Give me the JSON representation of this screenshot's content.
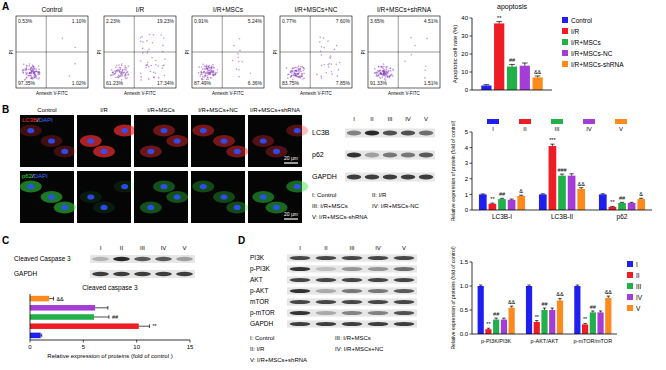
{
  "figure": {
    "panel_labels": [
      "A",
      "B",
      "C",
      "D"
    ],
    "flow": {
      "x_label": "Annexin V-FITC",
      "y_label": "PI",
      "plots": [
        {
          "title": "Control",
          "quadrants": [
            "0.53%",
            "1.10%",
            "97.35%",
            "1.02%"
          ]
        },
        {
          "title": "I/R",
          "quadrants": [
            "2.23%",
            "19.23%",
            "61.23%",
            "17.34%"
          ]
        },
        {
          "title": "I/R+MSCs",
          "quadrants": [
            "0.91%",
            "5.24%",
            "87.49%",
            "6.36%"
          ]
        },
        {
          "title": "I/R+MSCs+NC",
          "quadrants": [
            "0.77%",
            "7.60%",
            "83.75%",
            "7.85%"
          ]
        },
        {
          "title": "I/R+MSCs+shRNA",
          "quadrants": [
            "3.65%",
            "4.51%",
            "91.33%",
            "1.51%"
          ]
        }
      ]
    },
    "images": {
      "columns": [
        "Control",
        "I/R",
        "I/R+MSCs",
        "I/R+MSCs+NC",
        "I/R+MSCs+shRNA"
      ],
      "rows": [
        {
          "label_parts": [
            "LC3B",
            "/",
            "DAPI"
          ]
        },
        {
          "label_parts": [
            "p62",
            "/",
            "DAPI"
          ]
        }
      ],
      "scale_bar": "20 μm"
    },
    "blot_B": {
      "lanes": [
        "I",
        "II",
        "III",
        "IV",
        "V"
      ],
      "rows": [
        "LC3B",
        "p62",
        "GAPDH"
      ],
      "key": [
        "I: Control",
        "II: I/R",
        "III: I/R+MSCs",
        "IV: I/R+MSCs-NC",
        "V: I/R+MSCs-shRNA"
      ]
    },
    "blot_C": {
      "lanes": [
        "I",
        "II",
        "III",
        "IV",
        "V"
      ],
      "rows": [
        "Cleaved Caspase 3",
        "GAPDH"
      ]
    },
    "blot_D": {
      "lanes": [
        "I",
        "II",
        "III",
        "IV",
        "V"
      ],
      "rows": [
        "PI3K",
        "p-PI3K",
        "AKT",
        "p-AKT",
        "mTOR",
        "p-mTOR",
        "GAPDH"
      ],
      "key": [
        "I: Control",
        "II: I/R",
        "III: I/R+MSCs",
        "IV: I/R+MSCs+NC",
        "V: I/R+MSCs+shRNA"
      ]
    }
  },
  "chart_data": [
    {
      "type": "bar",
      "title": "apoptosis",
      "y_label": "Apoptotic cell rate (%)",
      "categories": [
        null
      ],
      "series": [
        {
          "name": "Control",
          "color": "#1f1fef",
          "values": [
            2.5
          ],
          "errors": [
            0.5
          ]
        },
        {
          "name": "I/R",
          "color": "#ee1c24",
          "values": [
            37
          ],
          "errors": [
            1
          ]
        },
        {
          "name": "I/R+MSCs",
          "color": "#22b04a",
          "values": [
            13
          ],
          "errors": [
            1.2
          ]
        },
        {
          "name": "I/R+MSCs-NC",
          "color": "#a43cd6",
          "values": [
            13.5
          ],
          "errors": [
            1.5
          ]
        },
        {
          "name": "I/R+MSCs-shRNA",
          "color": "#ff8a1c",
          "values": [
            7
          ],
          "errors": [
            0.8
          ]
        }
      ],
      "ylim": [
        0,
        40
      ],
      "yticks": [
        0,
        10,
        20,
        30,
        40
      ],
      "legend": "right",
      "annotations": [
        [
          "**",
          "##",
          "&&"
        ]
      ]
    },
    {
      "type": "bar",
      "y_label": "Relative expression of protein (fold of control)",
      "categories": [
        "LC3B-I",
        "LC3B-II",
        "p62"
      ],
      "series": [
        {
          "name": "I",
          "color": "#1f1fef",
          "values": [
            1,
            1,
            1
          ],
          "errors": [
            0.03,
            0.04,
            0.04
          ]
        },
        {
          "name": "II",
          "color": "#ee1c24",
          "values": [
            0.4,
            4.1,
            0.2
          ],
          "errors": [
            0.04,
            0.12,
            0.03
          ]
        },
        {
          "name": "III",
          "color": "#22b04a",
          "values": [
            0.7,
            2.2,
            0.45
          ],
          "errors": [
            0.05,
            0.1,
            0.04
          ]
        },
        {
          "name": "IV",
          "color": "#a43cd6",
          "values": [
            0.65,
            2.2,
            0.45
          ],
          "errors": [
            0.05,
            0.12,
            0.04
          ]
        },
        {
          "name": "V",
          "color": "#ff8a1c",
          "values": [
            0.9,
            1.35,
            0.7
          ],
          "errors": [
            0.05,
            0.08,
            0.05
          ]
        }
      ],
      "ylim": [
        0,
        5
      ],
      "yticks": [
        0,
        1,
        2,
        3,
        4,
        5
      ],
      "legend": "top",
      "annotations": [
        [
          "**",
          "##",
          "&"
        ],
        [
          "***",
          "###",
          "&&"
        ],
        [
          "**",
          "##",
          "&"
        ]
      ]
    },
    {
      "type": "bar",
      "orientation": "horizontal",
      "title": "Cleaved caspase 3",
      "x_label": "Relative expression of proteins (fold of control )",
      "categories": [
        null,
        null,
        null,
        null,
        null
      ],
      "values": [
        1,
        10.2,
        6,
        6.1,
        1.8
      ],
      "errors": [
        0.1,
        1,
        1.4,
        1.2,
        0.4
      ],
      "colors": [
        "#1f1fef",
        "#ee1c24",
        "#22b04a",
        "#a43cd6",
        "#ff8a1c"
      ],
      "xlim": [
        0,
        15
      ],
      "xticks": [
        0,
        5,
        10,
        15
      ],
      "annotations": [
        [
          "**",
          "##",
          "&&"
        ]
      ]
    },
    {
      "type": "bar",
      "y_label": "Relative expression of proteins (fold of control)",
      "categories": [
        "p-PI3K/PI3K",
        "p-AKT/AKT",
        "p-mTOR/mTOR"
      ],
      "series": [
        {
          "name": "I",
          "color": "#1f1fef",
          "values": [
            1,
            1,
            1
          ],
          "errors": [
            0.02,
            0.02,
            0.02
          ]
        },
        {
          "name": "II",
          "color": "#ee1c24",
          "values": [
            0.1,
            0.25,
            0.2
          ],
          "errors": [
            0.02,
            0.03,
            0.02
          ]
        },
        {
          "name": "III",
          "color": "#22b04a",
          "values": [
            0.3,
            0.5,
            0.45
          ],
          "errors": [
            0.03,
            0.04,
            0.03
          ]
        },
        {
          "name": "IV",
          "color": "#a43cd6",
          "values": [
            0.3,
            0.5,
            0.45
          ],
          "errors": [
            0.03,
            0.04,
            0.03
          ]
        },
        {
          "name": "V",
          "color": "#ff8a1c",
          "values": [
            0.55,
            0.7,
            0.75
          ],
          "errors": [
            0.03,
            0.04,
            0.04
          ]
        }
      ],
      "ylim": [
        0,
        1.5
      ],
      "yticks": [
        {
          "value": 0,
          "label": "0.0"
        },
        {
          "value": 0.5,
          "label": "0.5"
        },
        {
          "value": 1,
          "label": "1.0"
        },
        {
          "value": 1.5,
          "label": "1.5"
        }
      ],
      "legend": "right",
      "annotations": [
        [
          "**",
          "##",
          "&&"
        ],
        [
          "**",
          "##",
          "&&"
        ],
        [
          "**",
          "##",
          "&&"
        ]
      ]
    }
  ]
}
